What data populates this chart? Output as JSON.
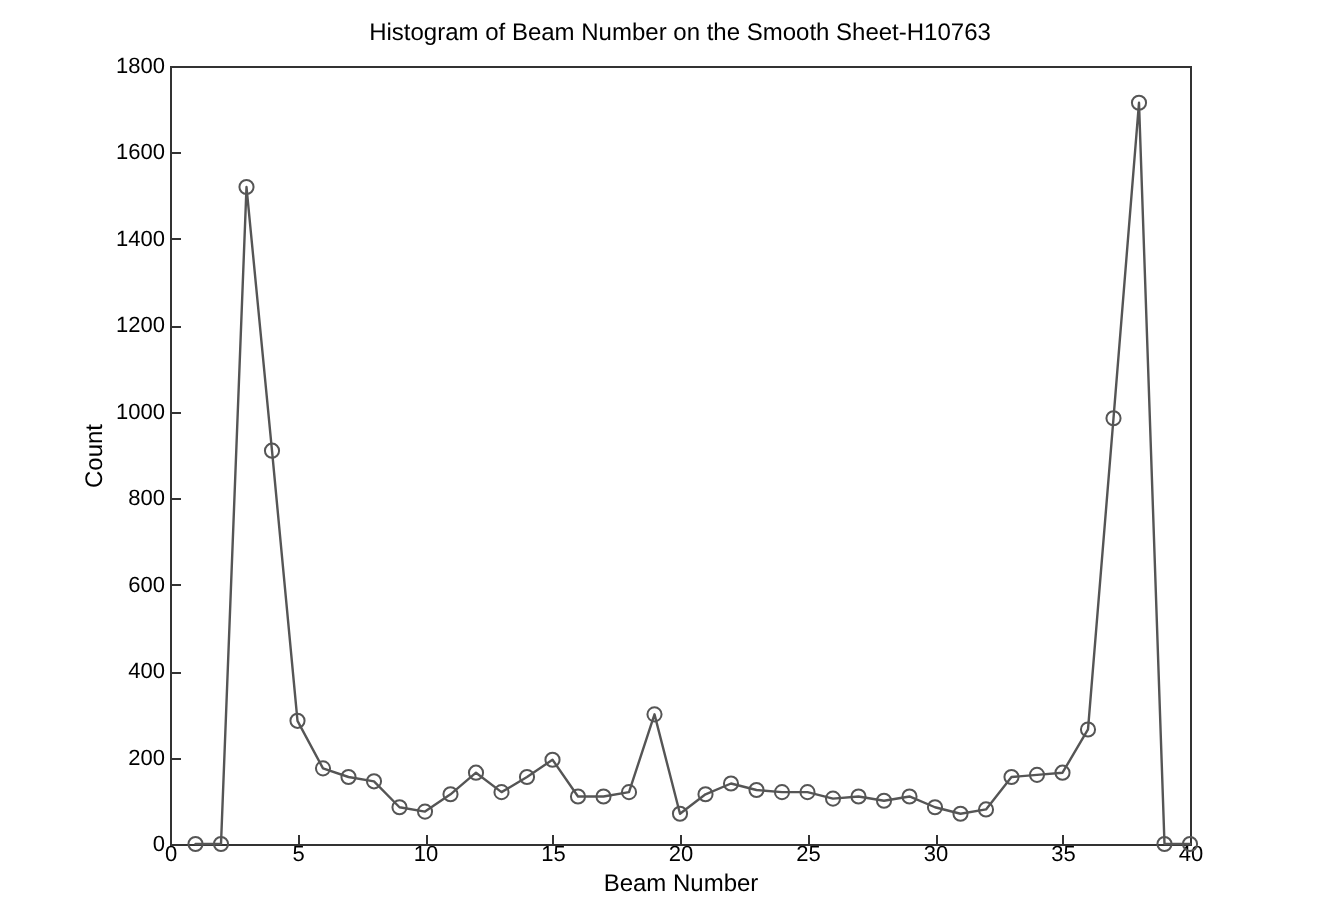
{
  "chart_data": {
    "type": "line",
    "title": "Histogram of Beam Number on the Smooth Sheet-H10763",
    "xlabel": "Beam Number",
    "ylabel": "Count",
    "x": [
      1,
      2,
      3,
      4,
      5,
      6,
      7,
      8,
      9,
      10,
      11,
      12,
      13,
      14,
      15,
      16,
      17,
      18,
      19,
      20,
      21,
      22,
      23,
      24,
      25,
      26,
      27,
      28,
      29,
      30,
      31,
      32,
      33,
      34,
      35,
      36,
      37,
      38,
      39,
      40
    ],
    "series": [
      {
        "color": "#555555",
        "values": [
          0,
          0,
          1520,
          910,
          285,
          175,
          155,
          145,
          85,
          75,
          115,
          165,
          120,
          155,
          195,
          110,
          110,
          120,
          300,
          70,
          115,
          140,
          125,
          120,
          120,
          105,
          110,
          100,
          110,
          85,
          70,
          80,
          155,
          160,
          165,
          265,
          985,
          1715,
          0,
          0
        ]
      }
    ],
    "xlim": [
      0,
      40
    ],
    "xticks": [
      0,
      5,
      10,
      15,
      20,
      25,
      30,
      35,
      40
    ],
    "ylim": [
      0,
      1800
    ],
    "yticks": [
      0,
      200,
      400,
      600,
      800,
      1000,
      1200,
      1400,
      1600,
      1800
    ],
    "grid": false,
    "marker": "circle",
    "line_style": "solid"
  }
}
